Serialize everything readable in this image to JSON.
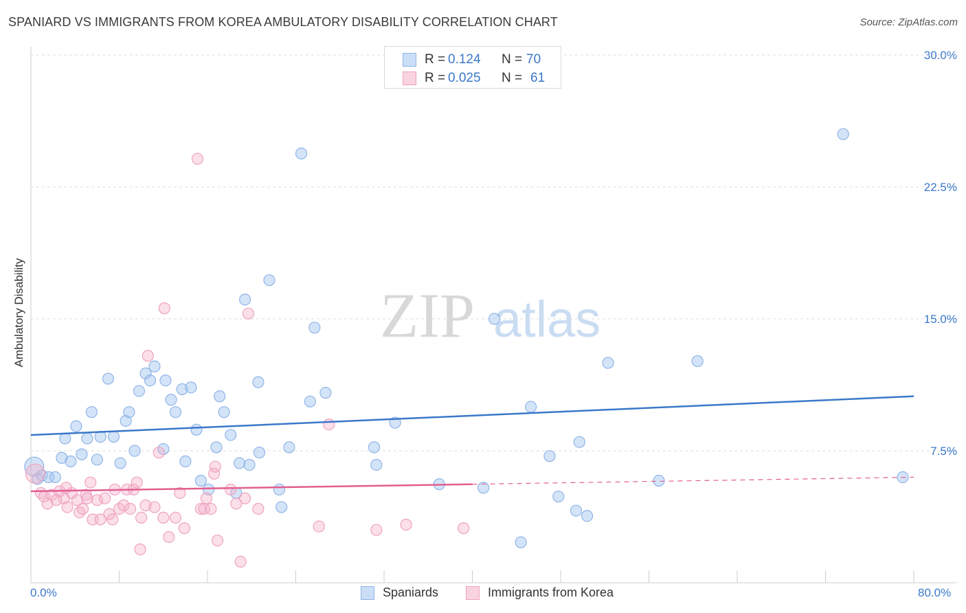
{
  "title": "SPANIARD VS IMMIGRANTS FROM KOREA AMBULATORY DISABILITY CORRELATION CHART",
  "source": "Source: ZipAtlas.com",
  "watermark": {
    "zip": "ZIP",
    "atlas": "atlas"
  },
  "colors": {
    "blue": "#3a78c9",
    "blue_fill": "rgba(160,195,240,0.45)",
    "blue_stroke": "#8fb4e6",
    "pink": "#e35d8f",
    "pink_fill": "rgba(245,175,200,0.40)",
    "pink_stroke": "#eea3bf",
    "axis_text": "#3a78c9",
    "grid": "#dedede"
  },
  "legend": {
    "row1": {
      "r_label": "R =",
      "r_value": "0.124",
      "n_label": "N =",
      "n_value": "70"
    },
    "row2": {
      "r_label": "R =",
      "r_value": "0.025",
      "n_label": "N =",
      "n_value": "61"
    }
  },
  "chart_data": {
    "type": "scatter",
    "title": "SPANIARD VS IMMIGRANTS FROM KOREA AMBULATORY DISABILITY CORRELATION CHART",
    "xlabel": "",
    "ylabel": "Ambulatory Disability",
    "xlim": [
      0,
      80
    ],
    "ylim": [
      0,
      30
    ],
    "x_tick_labels": [
      "0.0%",
      "80.0%"
    ],
    "y_ticks": [
      7.5,
      15.0,
      22.5,
      30.0
    ],
    "y_tick_labels": [
      "7.5%",
      "15.0%",
      "22.5%",
      "30.0%"
    ],
    "grid": true,
    "legend_position": "bottom-center",
    "series": [
      {
        "name": "Spaniards",
        "color": "#3a78c9",
        "r": 0.124,
        "n": 70,
        "trend": {
          "x": [
            0,
            80
          ],
          "y": [
            8.4,
            10.6
          ],
          "dashed_from": null
        },
        "points": [
          [
            0.3,
            6.6
          ],
          [
            0.6,
            5.9
          ],
          [
            1.0,
            6.1
          ],
          [
            1.6,
            6.0
          ],
          [
            2.2,
            6.0
          ],
          [
            2.8,
            7.1
          ],
          [
            3.1,
            8.2
          ],
          [
            3.6,
            6.9
          ],
          [
            4.1,
            8.9
          ],
          [
            4.6,
            7.3
          ],
          [
            5.1,
            8.2
          ],
          [
            5.5,
            9.7
          ],
          [
            6.0,
            7.0
          ],
          [
            6.3,
            8.3
          ],
          [
            7.0,
            11.6
          ],
          [
            7.5,
            8.3
          ],
          [
            8.1,
            6.8
          ],
          [
            8.6,
            9.2
          ],
          [
            8.9,
            9.7
          ],
          [
            9.4,
            7.5
          ],
          [
            9.8,
            10.9
          ],
          [
            10.4,
            11.9
          ],
          [
            10.8,
            11.5
          ],
          [
            11.2,
            12.3
          ],
          [
            12.0,
            7.6
          ],
          [
            12.2,
            11.5
          ],
          [
            12.7,
            10.4
          ],
          [
            13.1,
            9.7
          ],
          [
            13.7,
            11.0
          ],
          [
            14.0,
            6.9
          ],
          [
            14.5,
            11.1
          ],
          [
            15.0,
            8.7
          ],
          [
            15.4,
            5.8
          ],
          [
            16.1,
            5.3
          ],
          [
            16.8,
            7.7
          ],
          [
            17.1,
            10.6
          ],
          [
            17.5,
            9.7
          ],
          [
            18.1,
            8.4
          ],
          [
            18.6,
            5.1
          ],
          [
            18.9,
            6.8
          ],
          [
            19.4,
            16.1
          ],
          [
            19.8,
            6.7
          ],
          [
            20.6,
            11.4
          ],
          [
            20.7,
            7.4
          ],
          [
            21.6,
            17.2
          ],
          [
            22.5,
            5.3
          ],
          [
            22.7,
            4.3
          ],
          [
            23.4,
            7.7
          ],
          [
            24.5,
            24.4
          ],
          [
            25.3,
            10.3
          ],
          [
            25.7,
            14.5
          ],
          [
            26.7,
            10.8
          ],
          [
            31.1,
            7.7
          ],
          [
            31.3,
            6.7
          ],
          [
            33.0,
            9.1
          ],
          [
            37.0,
            5.6
          ],
          [
            41.0,
            5.4
          ],
          [
            42.0,
            15.0
          ],
          [
            44.4,
            2.3
          ],
          [
            45.3,
            10.0
          ],
          [
            47.0,
            7.2
          ],
          [
            47.8,
            4.9
          ],
          [
            49.4,
            4.1
          ],
          [
            49.7,
            8.0
          ],
          [
            50.4,
            3.8
          ],
          [
            52.3,
            12.5
          ],
          [
            56.9,
            5.8
          ],
          [
            60.4,
            12.6
          ],
          [
            73.6,
            25.5
          ],
          [
            79.0,
            6.0
          ]
        ]
      },
      {
        "name": "Immigrants from Korea",
        "color": "#e35d8f",
        "r": 0.025,
        "n": 61,
        "trend": {
          "x": [
            0,
            80
          ],
          "y": [
            5.2,
            6.0
          ],
          "dashed_from": 40
        },
        "points": [
          [
            0.4,
            6.2
          ],
          [
            0.9,
            5.1
          ],
          [
            1.2,
            4.9
          ],
          [
            1.5,
            4.5
          ],
          [
            1.9,
            5.0
          ],
          [
            2.3,
            4.7
          ],
          [
            2.6,
            5.2
          ],
          [
            3.0,
            4.8
          ],
          [
            3.3,
            4.3
          ],
          [
            3.7,
            5.1
          ],
          [
            4.2,
            4.7
          ],
          [
            4.4,
            4.0
          ],
          [
            4.7,
            4.2
          ],
          [
            5.0,
            5.0
          ],
          [
            5.4,
            5.7
          ],
          [
            5.6,
            3.6
          ],
          [
            6.0,
            4.7
          ],
          [
            6.3,
            3.6
          ],
          [
            6.7,
            4.8
          ],
          [
            7.1,
            3.9
          ],
          [
            7.4,
            3.6
          ],
          [
            7.6,
            5.3
          ],
          [
            8.0,
            4.2
          ],
          [
            8.4,
            4.4
          ],
          [
            8.7,
            5.3
          ],
          [
            9.0,
            4.2
          ],
          [
            9.3,
            5.3
          ],
          [
            9.6,
            5.7
          ],
          [
            9.9,
            1.9
          ],
          [
            10.0,
            3.7
          ],
          [
            10.4,
            4.4
          ],
          [
            10.6,
            12.9
          ],
          [
            11.2,
            4.3
          ],
          [
            11.6,
            7.4
          ],
          [
            12.0,
            3.7
          ],
          [
            12.1,
            15.6
          ],
          [
            12.5,
            2.6
          ],
          [
            13.1,
            3.7
          ],
          [
            13.5,
            5.1
          ],
          [
            13.9,
            3.1
          ],
          [
            15.1,
            24.1
          ],
          [
            15.4,
            4.2
          ],
          [
            15.7,
            4.2
          ],
          [
            15.9,
            4.8
          ],
          [
            16.6,
            6.2
          ],
          [
            16.7,
            6.6
          ],
          [
            16.9,
            2.4
          ],
          [
            18.1,
            5.3
          ],
          [
            18.6,
            4.5
          ],
          [
            19.0,
            1.2
          ],
          [
            19.4,
            4.8
          ],
          [
            19.7,
            15.3
          ],
          [
            20.6,
            4.2
          ],
          [
            26.1,
            3.2
          ],
          [
            27.0,
            9.0
          ],
          [
            31.3,
            3.0
          ],
          [
            34.0,
            3.3
          ],
          [
            39.2,
            3.1
          ],
          [
            16.3,
            4.2
          ],
          [
            5.1,
            4.8
          ],
          [
            3.2,
            5.4
          ]
        ]
      }
    ]
  },
  "bottom_legend": [
    "Spaniards",
    "Immigrants from Korea"
  ]
}
